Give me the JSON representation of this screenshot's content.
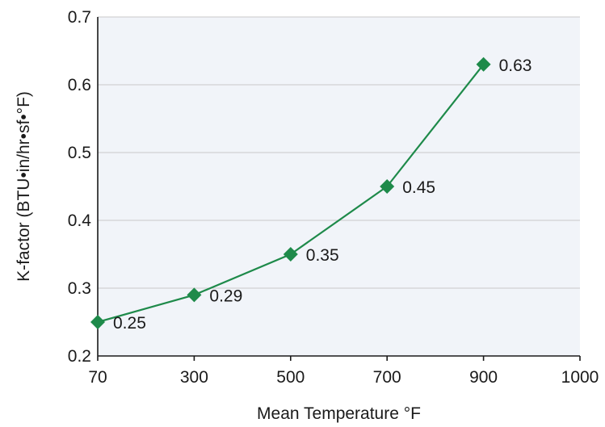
{
  "chart_data": {
    "type": "line",
    "title": "",
    "xlabel": "Mean Temperature °F",
    "ylabel": "K-factor (BTU•in/hr•sf•°F)",
    "x_ticks": [
      "70",
      "300",
      "500",
      "700",
      "900",
      "1000"
    ],
    "y_ticks": [
      "0.2",
      "0.3",
      "0.4",
      "0.5",
      "0.6",
      "0.7"
    ],
    "ylim": [
      0.2,
      0.7
    ],
    "grid": "horizontal",
    "legend": "none",
    "series": [
      {
        "marker": "diamond",
        "x": [
          "70",
          "300",
          "500",
          "700",
          "900"
        ],
        "values": [
          0.25,
          0.29,
          0.35,
          0.45,
          0.63
        ],
        "labels": [
          "0.25",
          "0.29",
          "0.35",
          "0.45",
          "0.63"
        ]
      }
    ],
    "colors": {
      "series": "#1e8a4a",
      "plot_background": "#f1f4f9",
      "gridline": "#c9c9c9",
      "axis": "#1a1a1a"
    }
  }
}
